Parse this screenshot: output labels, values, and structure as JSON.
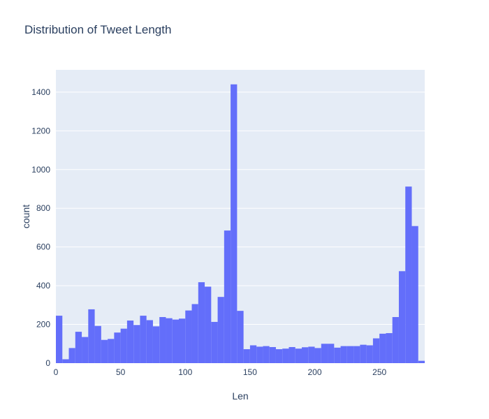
{
  "chart_data": {
    "type": "bar",
    "title": "Distribution of Tweet Length",
    "xlabel": "Len",
    "ylabel": "count",
    "bin_width": 5,
    "x": [
      0,
      5,
      10,
      15,
      20,
      25,
      30,
      35,
      40,
      45,
      50,
      55,
      60,
      65,
      70,
      75,
      80,
      85,
      90,
      95,
      100,
      105,
      110,
      115,
      120,
      125,
      130,
      135,
      140,
      145,
      150,
      155,
      160,
      165,
      170,
      175,
      180,
      185,
      190,
      195,
      200,
      205,
      210,
      215,
      220,
      225,
      230,
      235,
      240,
      245,
      250,
      255,
      260,
      265,
      270,
      275,
      280
    ],
    "values": [
      245,
      20,
      78,
      162,
      135,
      278,
      192,
      120,
      125,
      158,
      178,
      220,
      197,
      245,
      222,
      190,
      238,
      232,
      225,
      230,
      272,
      305,
      418,
      395,
      213,
      342,
      685,
      1440,
      270,
      72,
      92,
      85,
      88,
      83,
      72,
      75,
      83,
      75,
      82,
      85,
      78,
      100,
      100,
      80,
      88,
      88,
      88,
      95,
      92,
      128,
      152,
      155,
      238,
      475,
      912,
      708,
      12
    ],
    "xlim": [
      0,
      285
    ],
    "ylim": [
      0,
      1515
    ],
    "x_ticks": [
      0,
      50,
      100,
      150,
      200,
      250
    ],
    "y_ticks": [
      0,
      200,
      400,
      600,
      800,
      1000,
      1200,
      1400
    ],
    "grid": true,
    "colors": {
      "bar": "#636efa",
      "plot_background": "#e5ecf6",
      "grid": "#ffffff",
      "text": "#2a3f5f"
    }
  }
}
